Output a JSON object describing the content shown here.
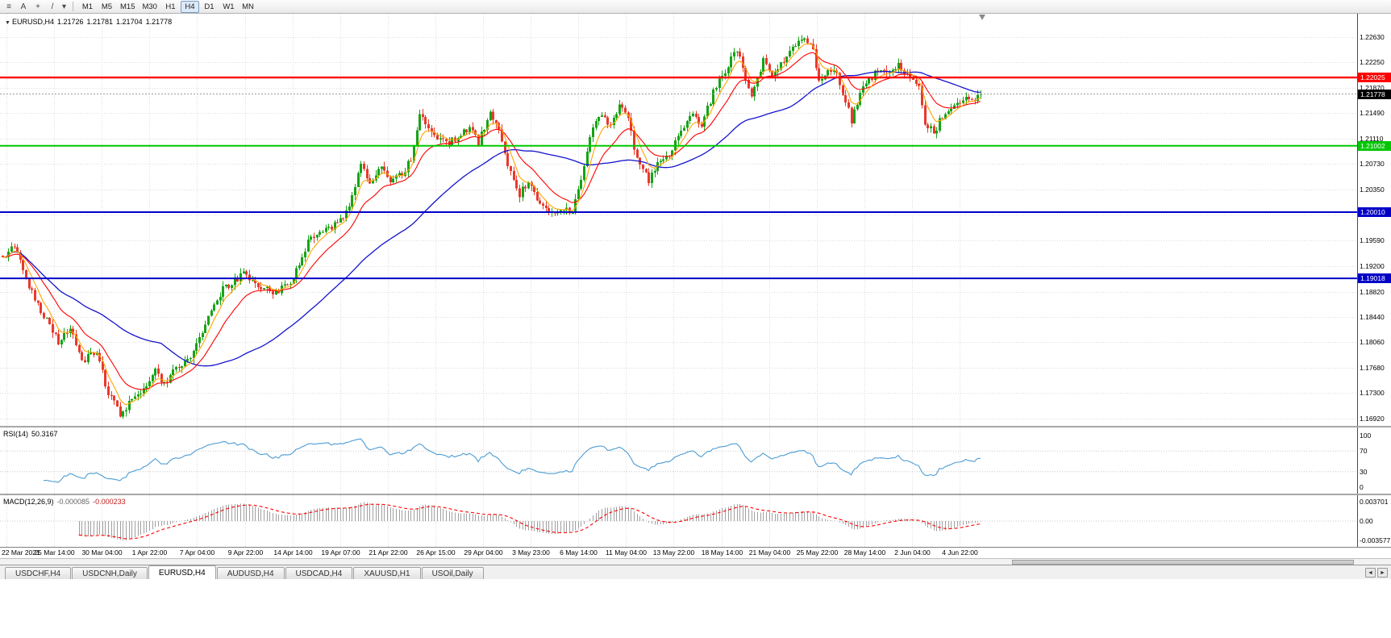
{
  "toolbar": {
    "icons": [
      {
        "name": "charts-grid-icon",
        "glyph": "≡"
      },
      {
        "name": "text-tool-icon",
        "glyph": "A"
      },
      {
        "name": "crosshair-icon",
        "glyph": "+"
      },
      {
        "name": "trendline-tool-icon",
        "glyph": "/"
      },
      {
        "name": "draw-tools-dropdown-icon",
        "glyph": "▾"
      }
    ],
    "timeframes": [
      "M1",
      "M5",
      "M15",
      "M30",
      "H1",
      "H4",
      "D1",
      "W1",
      "MN"
    ],
    "active_timeframe": "H4"
  },
  "chart": {
    "header": {
      "marker_glyph": "▼",
      "symbol": "EURUSD,H4",
      "open": "1.21726",
      "high": "1.21781",
      "low": "1.21704",
      "close": "1.21778"
    },
    "price_axis": [
      "1.22630",
      "1.22250",
      "1.21870",
      "1.21490",
      "1.21110",
      "1.20730",
      "1.20350",
      "1.19970",
      "1.19590",
      "1.19200",
      "1.18820",
      "1.18440",
      "1.18060",
      "1.17680",
      "1.17300",
      "1.16920"
    ],
    "dates": [
      "22 Mar 2021",
      "25 Mar 14:00",
      "30 Mar 04:00",
      "1 Apr 22:00",
      "7 Apr 04:00",
      "9 Apr 22:00",
      "14 Apr 14:00",
      "19 Apr 07:00",
      "21 Apr 22:00",
      "26 Apr 15:00",
      "29 Apr 04:00",
      "3 May 23:00",
      "6 May 14:00",
      "11 May 04:00",
      "13 May 22:00",
      "18 May 14:00",
      "21 May 04:00",
      "25 May 22:00",
      "28 May 14:00",
      "2 Jun 04:00",
      "4 Jun 22:00"
    ],
    "levels": [
      {
        "price": 1.22025,
        "label": "1.22025",
        "color": "#FF0000",
        "width": 2.4
      },
      {
        "price": 1.21002,
        "label": "1.21002",
        "color": "#00C800",
        "width": 2
      },
      {
        "price": 1.2001,
        "label": "1.20010",
        "color": "#0000C8",
        "width": 2
      },
      {
        "price": 1.19018,
        "label": "1.19018",
        "color": "#0000C8",
        "width": 2
      }
    ],
    "current_price": {
      "value": 1.21778,
      "label": "1.21778"
    },
    "colors": {
      "up": "#17A317",
      "down": "#E8392D",
      "ma_fast": "#FFA500",
      "ma_mid": "#FF0000",
      "ma_slow": "#1414CC",
      "grid": "#DCDCDC",
      "current_line": "#9A9A9A",
      "shift_marker": "#8C8C8C"
    }
  },
  "rsi": {
    "label": "RSI(14)",
    "value": "50.3167",
    "color": "#4C9CD4",
    "axis": [
      "100",
      "70",
      "30",
      "0"
    ],
    "guides": [
      70,
      30
    ]
  },
  "macd": {
    "label": "MACD(12,26,9)",
    "value_main": "-0.000085",
    "value_signal": "-0.000233",
    "hist_color": "#A0A0A0",
    "signal_color": "#FF0000",
    "axis": [
      "0.003701",
      "0.00",
      "-0.003577"
    ]
  },
  "tabs_bar": {
    "tabs": [
      "USDCHF,H4",
      "USDCNH,Daily",
      "EURUSD,H4",
      "AUDUSD,H4",
      "USDCAD,H4",
      "XAUUSD,H1",
      "USOil,Daily"
    ],
    "active_tab": "EURUSD,H4",
    "scroll_left_glyph": "◄",
    "scroll_right_glyph": "►"
  },
  "chart_data": {
    "type": "candlestick",
    "symbol": "EURUSD",
    "timeframe": "H4",
    "title": "EURUSD,H4 1.21726 1.21781 1.21704 1.21778",
    "candle_count": 334,
    "seed": 13,
    "y_range": [
      1.1681,
      1.2298
    ],
    "x_axis_labels": [
      "22 Mar 2021",
      "25 Mar 14:00",
      "30 Mar 04:00",
      "1 Apr 22:00",
      "7 Apr 04:00",
      "9 Apr 22:00",
      "14 Apr 14:00",
      "19 Apr 07:00",
      "21 Apr 22:00",
      "26 Apr 15:00",
      "29 Apr 04:00",
      "3 May 23:00",
      "6 May 14:00",
      "11 May 04:00",
      "13 May 22:00",
      "18 May 14:00",
      "21 May 04:00",
      "25 May 22:00",
      "28 May 14:00",
      "2 Jun 04:00",
      "4 Jun 22:00"
    ],
    "ohlc_current": {
      "open": 1.21726,
      "high": 1.21781,
      "low": 1.21704,
      "close": 1.21778
    },
    "horizontal_lines": [
      1.22025,
      1.21002,
      1.2001,
      1.19018
    ],
    "overlays": [
      {
        "name": "fast MA",
        "period": 6,
        "color": "#FFA500"
      },
      {
        "name": "medium MA",
        "period": 16,
        "color": "#FF0000"
      },
      {
        "name": "slow MA",
        "period": 55,
        "color": "#1414CC"
      }
    ],
    "indicators": [
      {
        "name": "RSI",
        "period": 14,
        "current": 50.3167,
        "scale": [
          0,
          100
        ],
        "guides": [
          30,
          70
        ]
      },
      {
        "name": "MACD",
        "fast": 12,
        "slow": 26,
        "signal": 9,
        "current_main": -8.5e-05,
        "current_signal": -0.000233,
        "scale_max": 0.003701,
        "scale_min": -0.003577
      }
    ],
    "price_path_anchors": [
      [
        0,
        1.1935
      ],
      [
        4,
        1.1952
      ],
      [
        10,
        1.188
      ],
      [
        15,
        1.1838
      ],
      [
        19,
        1.1808
      ],
      [
        23,
        1.1825
      ],
      [
        27,
        1.1778
      ],
      [
        32,
        1.1792
      ],
      [
        36,
        1.173
      ],
      [
        40,
        1.17
      ],
      [
        44,
        1.1718
      ],
      [
        48,
        1.1738
      ],
      [
        52,
        1.1762
      ],
      [
        55,
        1.1745
      ],
      [
        59,
        1.1768
      ],
      [
        64,
        1.1785
      ],
      [
        70,
        1.1845
      ],
      [
        75,
        1.1885
      ],
      [
        82,
        1.1908
      ],
      [
        88,
        1.189
      ],
      [
        93,
        1.1878
      ],
      [
        99,
        1.1902
      ],
      [
        104,
        1.1955
      ],
      [
        110,
        1.1978
      ],
      [
        114,
        1.1982
      ],
      [
        118,
        1.201
      ],
      [
        122,
        1.2078
      ],
      [
        125,
        1.204
      ],
      [
        129,
        1.2068
      ],
      [
        132,
        1.2045
      ],
      [
        136,
        1.2058
      ],
      [
        139,
        1.208
      ],
      [
        142,
        1.2148
      ],
      [
        147,
        1.2118
      ],
      [
        151,
        1.2105
      ],
      [
        155,
        1.2112
      ],
      [
        159,
        1.2128
      ],
      [
        162,
        1.2105
      ],
      [
        166,
        1.2152
      ],
      [
        169,
        1.2122
      ],
      [
        173,
        1.2058
      ],
      [
        176,
        1.2028
      ],
      [
        179,
        1.2048
      ],
      [
        183,
        1.2015
      ],
      [
        186,
        1.2
      ],
      [
        190,
        1.2008
      ],
      [
        194,
        1.2002
      ],
      [
        197,
        1.2048
      ],
      [
        201,
        1.2128
      ],
      [
        204,
        1.2145
      ],
      [
        207,
        1.2128
      ],
      [
        210,
        1.2162
      ],
      [
        213,
        1.2142
      ],
      [
        216,
        1.2078
      ],
      [
        220,
        1.2048
      ],
      [
        223,
        1.2072
      ],
      [
        227,
        1.2088
      ],
      [
        231,
        1.2124
      ],
      [
        235,
        1.2152
      ],
      [
        238,
        1.2132
      ],
      [
        242,
        1.218
      ],
      [
        247,
        1.2222
      ],
      [
        250,
        1.2246
      ],
      [
        253,
        1.22
      ],
      [
        255,
        1.2172
      ],
      [
        259,
        1.2228
      ],
      [
        262,
        1.2205
      ],
      [
        266,
        1.223
      ],
      [
        270,
        1.2252
      ],
      [
        273,
        1.2262
      ],
      [
        276,
        1.2242
      ],
      [
        278,
        1.2196
      ],
      [
        281,
        1.2216
      ],
      [
        284,
        1.2206
      ],
      [
        287,
        1.2168
      ],
      [
        289,
        1.2138
      ],
      [
        292,
        1.2178
      ],
      [
        295,
        1.22
      ],
      [
        299,
        1.2218
      ],
      [
        302,
        1.2212
      ],
      [
        305,
        1.222
      ],
      [
        308,
        1.2205
      ],
      [
        312,
        1.2188
      ],
      [
        314,
        1.2135
      ],
      [
        317,
        1.212
      ],
      [
        320,
        1.2145
      ],
      [
        324,
        1.2165
      ],
      [
        327,
        1.2172
      ],
      [
        330,
        1.2168
      ],
      [
        333,
        1.21778
      ]
    ]
  }
}
